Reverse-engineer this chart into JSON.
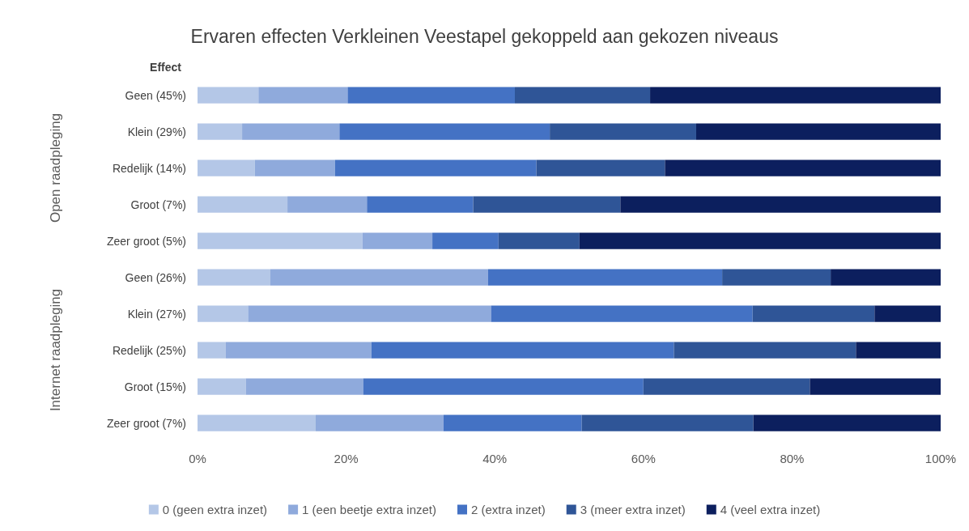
{
  "chart_data": {
    "type": "bar",
    "title": "Ervaren effecten Verkleinen Veestapel gekoppeld aan gekozen niveaus",
    "orientation": "horizontal",
    "stacked": true,
    "categories": [
      "Geen (45%)",
      "Klein (29%)",
      "Redelijk (14%)",
      "Groot (7%)",
      "Zeer groot (5%)",
      "Geen (26%)",
      "Klein (27%)",
      "Redelijk (25%)",
      "Groot (15%)",
      "Zeer groot (7%)"
    ],
    "series": [
      {
        "name": "0 (geen extra inzet)",
        "color": "#b4c7e7",
        "values": [
          8.2,
          6.0,
          7.7,
          12.1,
          22.2,
          9.8,
          6.8,
          3.8,
          6.5,
          15.9
        ]
      },
      {
        "name": "1 (een beetje extra inzet)",
        "color": "#8faadc",
        "values": [
          12.0,
          13.1,
          10.8,
          10.7,
          9.4,
          29.3,
          32.7,
          19.6,
          15.8,
          17.2
        ]
      },
      {
        "name": "2 (extra inzet)",
        "color": "#4472c4",
        "values": [
          22.5,
          28.3,
          27.1,
          14.3,
          8.9,
          31.5,
          35.2,
          40.7,
          37.7,
          18.6
        ]
      },
      {
        "name": "3 (meer extra inzet)",
        "color": "#2f5597",
        "values": [
          18.2,
          19.7,
          17.3,
          19.8,
          10.9,
          14.6,
          16.4,
          24.5,
          22.4,
          23.1
        ]
      },
      {
        "name": "4 (veel extra inzet)",
        "color": "#0c1f5e",
        "values": [
          39.1,
          32.9,
          37.1,
          43.1,
          48.6,
          14.8,
          8.9,
          11.4,
          17.6,
          25.2
        ]
      }
    ],
    "xlim": [
      0,
      100
    ],
    "xticks": [
      {
        "value": 0,
        "label": "0%"
      },
      {
        "value": 20,
        "label": "20%"
      },
      {
        "value": 40,
        "label": "40%"
      },
      {
        "value": 60,
        "label": "60%"
      },
      {
        "value": 80,
        "label": "80%"
      },
      {
        "value": 100,
        "label": "100%"
      }
    ],
    "annotations": [
      "Effect",
      "Open raadpleging",
      "Internet raadpleging"
    ],
    "grid": false,
    "legend": "bottom"
  }
}
